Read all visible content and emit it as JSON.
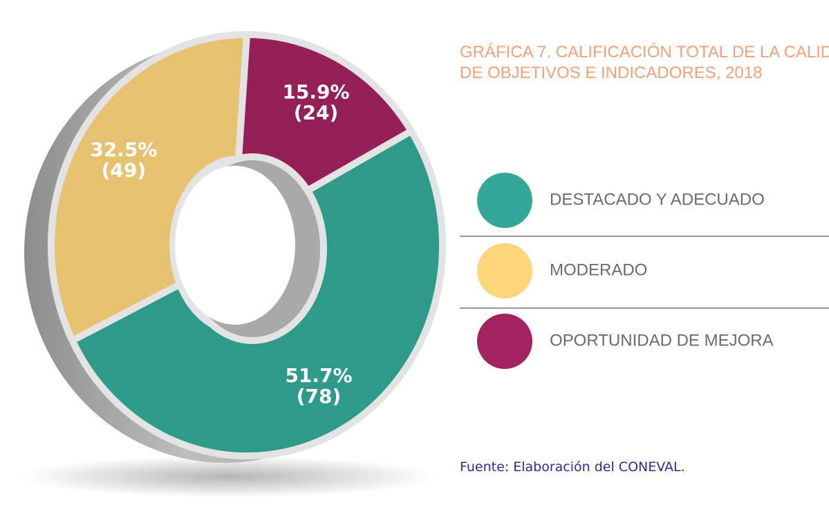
{
  "chart_data": {
    "type": "donut",
    "title": [
      "GRÁFICA 7. CALIFICACIÓN TOTAL DE LA CALID",
      "DE OBJETIVOS E INDICADORES, 2018"
    ],
    "categories": [
      "DESTACADO Y ADECUADO",
      "MODERADO",
      "OPORTUNIDAD DE MEJORA"
    ],
    "values": [
      51.7,
      32.5,
      15.9
    ],
    "value_labels": [
      "51.7%",
      "32.5%",
      "15.9%"
    ],
    "count_labels": [
      "(78)",
      "(49)",
      "(24)"
    ],
    "colors": [
      "#2e9b8a",
      "#e6c26e",
      "#951f57"
    ],
    "legend_colors": [
      "#33a898",
      "#fdd679",
      "#a3225f"
    ],
    "source": "Fuente: Elaboración del CONEVAL."
  }
}
